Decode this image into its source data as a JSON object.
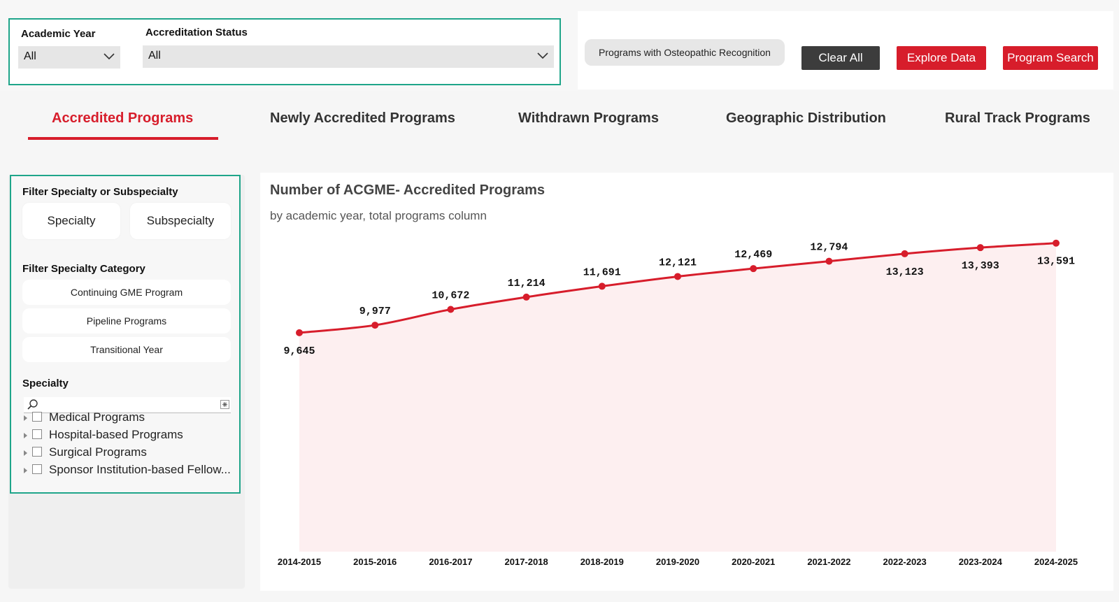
{
  "filters": {
    "academic_year": {
      "label": "Academic Year",
      "value": "All"
    },
    "accreditation_status": {
      "label": "Accreditation Status",
      "value": "All"
    }
  },
  "buttons": {
    "osteopathic": "Programs with Osteopathic Recognition",
    "clear_all": "Clear All",
    "explore_data": "Explore Data",
    "program_search": "Program Search"
  },
  "colors": {
    "accent": "#d71d2b",
    "teal_border": "#1fa58a",
    "dark_button": "#3c3c3c"
  },
  "tabs": [
    {
      "label": "Accredited Programs",
      "active": true
    },
    {
      "label": "Newly Accredited Programs",
      "active": false
    },
    {
      "label": "Withdrawn Programs",
      "active": false
    },
    {
      "label": "Geographic Distribution",
      "active": false
    },
    {
      "label": "Rural Track Programs",
      "active": false
    }
  ],
  "left_panel": {
    "filter_type_label": "Filter Specialty or Subspecialty",
    "specialty_btn": "Specialty",
    "subspecialty_btn": "Subspecialty",
    "category_label": "Filter Specialty Category",
    "categories": [
      "Continuing GME Program",
      "Pipeline Programs",
      "Transitional Year"
    ],
    "specialty_label": "Specialty",
    "search_placeholder": "",
    "tree": [
      "Medical Programs",
      "Hospital-based Programs",
      "Surgical Programs",
      "Sponsor Institution-based Fellow..."
    ]
  },
  "chart_data": {
    "type": "line",
    "title": "Number of ACGME- Accredited Programs",
    "subtitle": "by academic year, total programs column",
    "categories": [
      "2014-2015",
      "2015-2016",
      "2016-2017",
      "2017-2018",
      "2018-2019",
      "2019-2020",
      "2020-2021",
      "2021-2022",
      "2022-2023",
      "2023-2024",
      "2024-2025"
    ],
    "values": [
      9645,
      9977,
      10672,
      11214,
      11691,
      12121,
      12469,
      12794,
      13123,
      13393,
      13591
    ],
    "labels": [
      "9,645",
      "9,977",
      "10,672",
      "11,214",
      "11,691",
      "12,121",
      "12,469",
      "12,794",
      "13,123",
      "13,393",
      "13,591"
    ],
    "label_position": [
      "below",
      "above",
      "above",
      "above",
      "above",
      "above",
      "above",
      "above",
      "below",
      "below",
      "below"
    ],
    "ylim": [
      0,
      15400
    ],
    "grid": false,
    "line_color": "#d71d2b",
    "area_color": "#fdeff0"
  }
}
